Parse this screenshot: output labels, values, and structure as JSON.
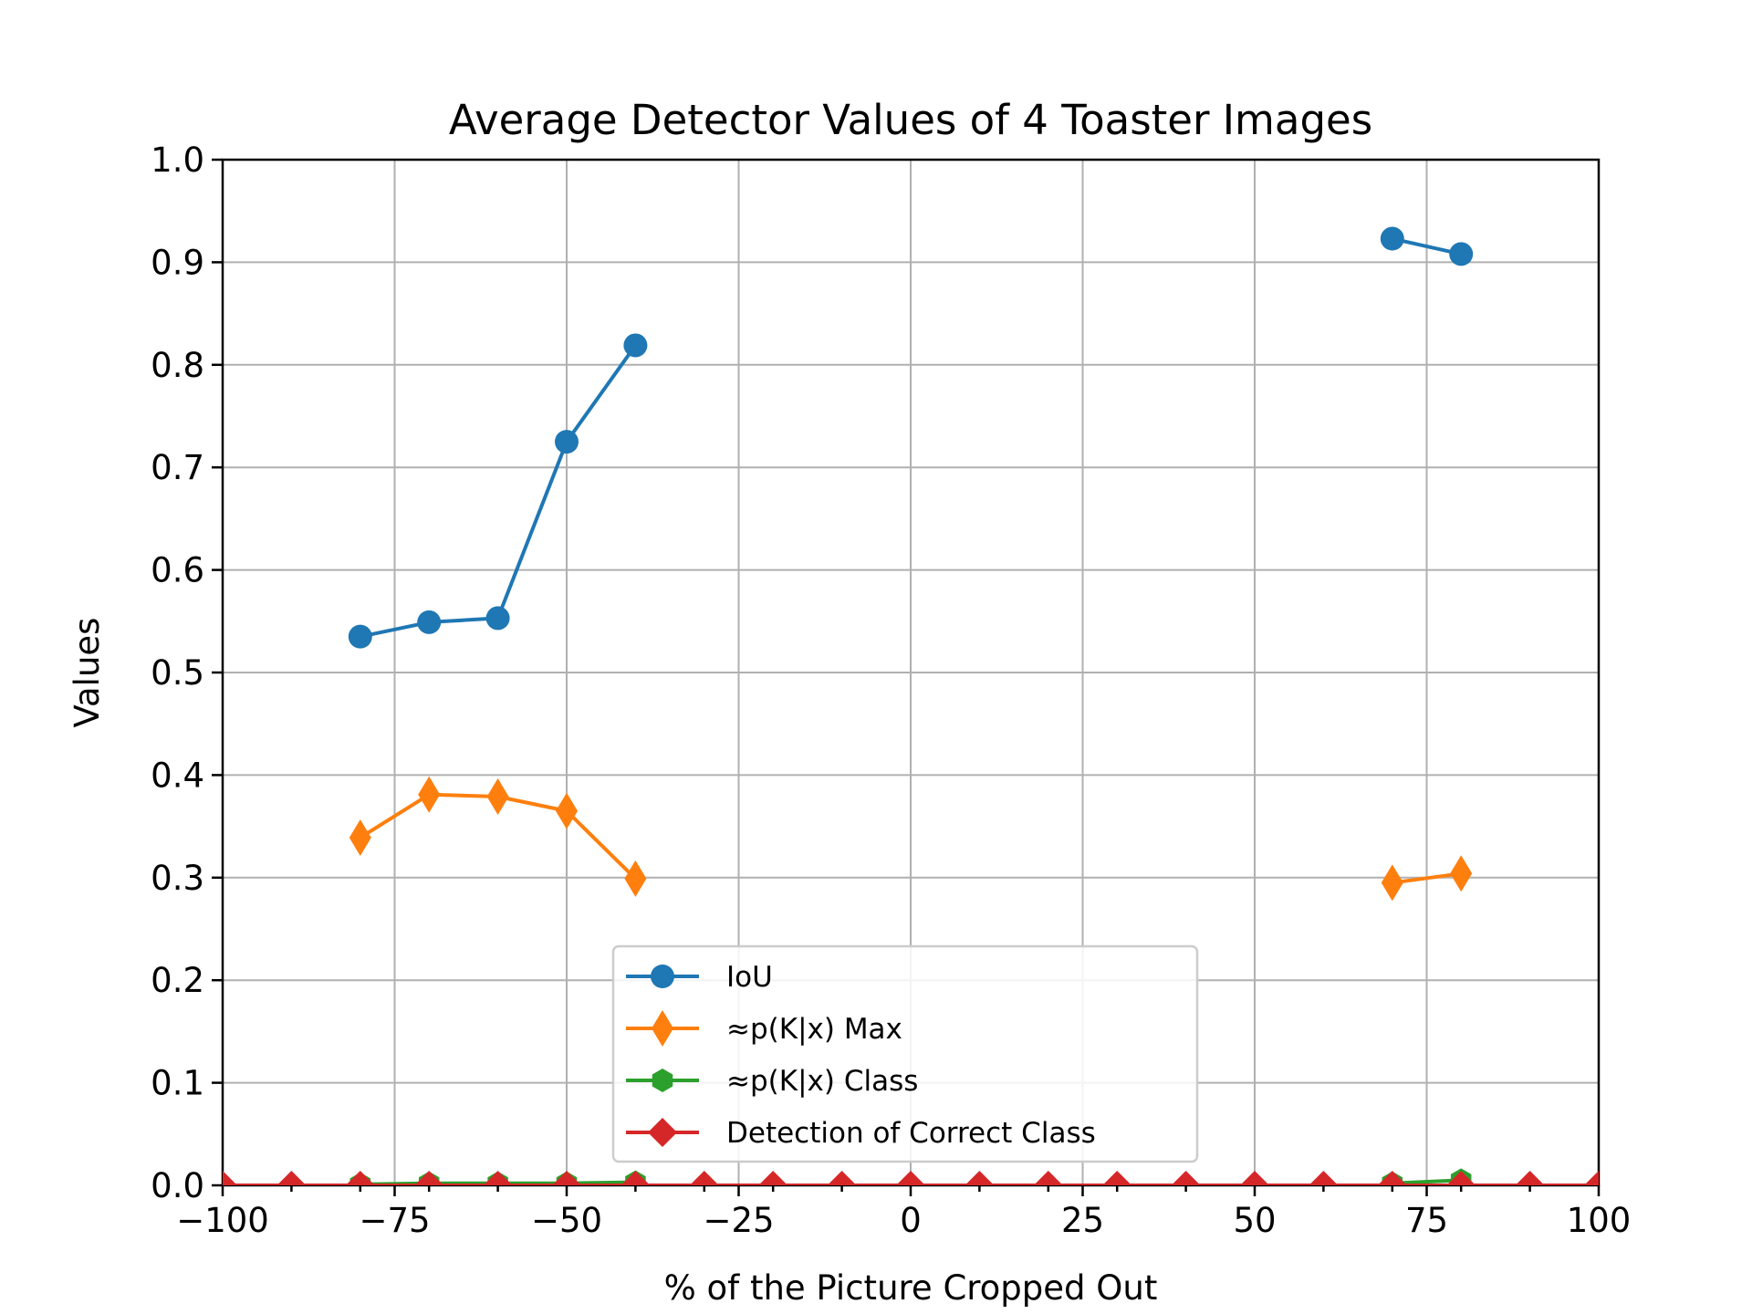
{
  "chart_data": {
    "type": "line",
    "title": "Average Detector Values of 4 Toaster Images",
    "xlabel": "% of the Picture Cropped Out",
    "ylabel": "Values",
    "xlim": [
      -100,
      100
    ],
    "ylim": [
      0.0,
      1.0
    ],
    "grid": true,
    "legend_position": "bottom-center",
    "x_ticks": [
      -100,
      -75,
      -50,
      -25,
      0,
      25,
      50,
      75,
      100
    ],
    "x_tick_labels": [
      "−100",
      "−75",
      "−50",
      "−25",
      "0",
      "25",
      "50",
      "75",
      "100"
    ],
    "y_ticks": [
      0.0,
      0.1,
      0.2,
      0.3,
      0.4,
      0.5,
      0.6,
      0.7,
      0.8,
      0.9,
      1.0
    ],
    "y_tick_labels": [
      "0.0",
      "0.1",
      "0.2",
      "0.3",
      "0.4",
      "0.5",
      "0.6",
      "0.7",
      "0.8",
      "0.9",
      "1.0"
    ],
    "x_minor_ticks": [
      -90,
      -80,
      -70,
      -60,
      -40,
      -30,
      -20,
      -10,
      10,
      20,
      30,
      40,
      60,
      70,
      80,
      90
    ],
    "series": [
      {
        "name": "IoU",
        "color": "#1f77b4",
        "marker": "circle",
        "segments": [
          {
            "x": [
              -80,
              -70,
              -60,
              -50,
              -40
            ],
            "y": [
              0.535,
              0.549,
              0.553,
              0.725,
              0.819
            ]
          },
          {
            "x": [
              70,
              80
            ],
            "y": [
              0.923,
              0.908
            ]
          }
        ]
      },
      {
        "name": "≈p(K|x) Max",
        "color": "#ff7f0e",
        "marker": "thin_diamond",
        "segments": [
          {
            "x": [
              -80,
              -70,
              -60,
              -50,
              -40
            ],
            "y": [
              0.339,
              0.381,
              0.379,
              0.365,
              0.299
            ]
          },
          {
            "x": [
              70,
              80
            ],
            "y": [
              0.295,
              0.304
            ]
          }
        ]
      },
      {
        "name": "≈p(K|x) Class",
        "color": "#2ca02c",
        "marker": "hexagon",
        "segments": [
          {
            "x": [
              -80,
              -70,
              -60,
              -50,
              -40
            ],
            "y": [
              0.001,
              0.002,
              0.002,
              0.002,
              0.003
            ]
          },
          {
            "x": [
              70,
              80
            ],
            "y": [
              0.002,
              0.005
            ]
          }
        ]
      },
      {
        "name": "Detection of Correct Class",
        "color": "#d62728",
        "marker": "diamond",
        "segments": [
          {
            "x": [
              -100,
              -90,
              -80,
              -70,
              -60,
              -50,
              -40,
              -30,
              -20,
              -10,
              0,
              10,
              20,
              30,
              40,
              50,
              60,
              70,
              80,
              90,
              100
            ],
            "y": [
              0,
              0,
              0,
              0,
              0,
              0,
              0,
              0,
              0,
              0,
              0,
              0,
              0,
              0,
              0,
              0,
              0,
              0,
              0,
              0,
              0
            ]
          }
        ]
      }
    ]
  }
}
